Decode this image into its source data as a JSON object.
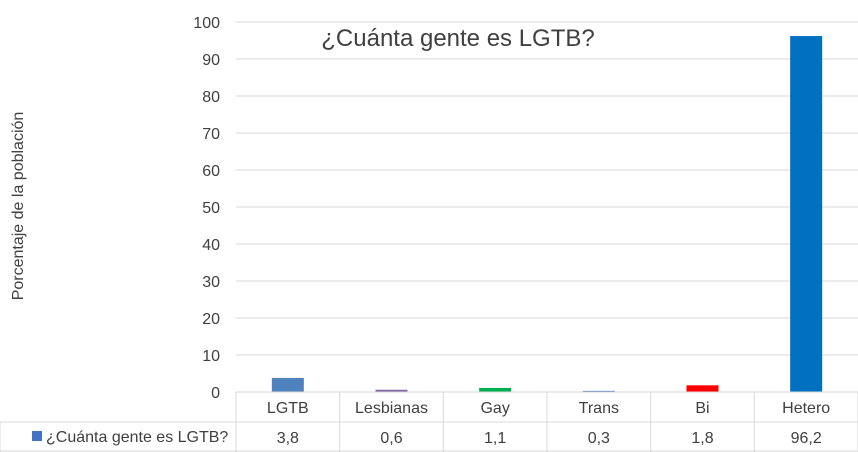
{
  "chart_data": {
    "type": "bar",
    "title": "¿Cuánta gente es LGTB?",
    "ylabel": "Porcentaje de la población",
    "xlabel": "",
    "ylim": [
      0,
      100
    ],
    "yticks": [
      "0",
      "10",
      "20",
      "30",
      "40",
      "50",
      "60",
      "70",
      "80",
      "90",
      "100"
    ],
    "categories": [
      "LGTB",
      "Lesbianas",
      "Gay",
      "Trans",
      "Bi",
      "Hetero"
    ],
    "series": [
      {
        "name": "¿Cuánta gente es LGTB?",
        "values": [
          3.8,
          0.6,
          1.1,
          0.3,
          1.8,
          96.2
        ],
        "labels": [
          "3,8",
          "0,6",
          "1,1",
          "0,3",
          "1,8",
          "96,2"
        ]
      }
    ],
    "bar_colors": [
      "#4F81BD",
      "#8064A2",
      "#00B050",
      "#4472C4",
      "#FF0000",
      "#0070C0"
    ],
    "legend_color": "#4472C4",
    "grid": true,
    "legend": "data-table"
  }
}
